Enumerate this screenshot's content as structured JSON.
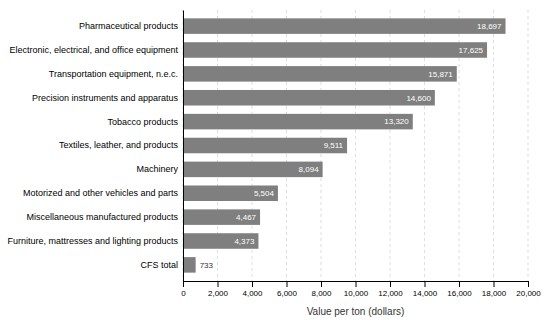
{
  "chart_data": {
    "type": "bar",
    "orientation": "horizontal",
    "categories": [
      "CFS total",
      "Furniture, mattresses and lighting products",
      "Miscellaneous manufactured products",
      "Motorized and other vehicles and parts",
      "Machinery",
      "Textiles, leather, and products",
      "Tobacco products",
      "Precision instruments and apparatus",
      "Transportation equipment, n.e.c.",
      "Electronic, electrical, and office equipment",
      "Pharmaceutical products"
    ],
    "values": [
      733,
      4373,
      4467,
      5504,
      8094,
      9511,
      13320,
      14600,
      15871,
      17625,
      18697
    ],
    "value_labels": [
      "733",
      "4,373",
      "4,467",
      "5,504",
      "8,094",
      "9,511",
      "13,320",
      "14,600",
      "15,871",
      "17,625",
      "18,697"
    ],
    "data_labels": true,
    "color": "#7f7f7f",
    "xlabel": "Value per ton (dollars)",
    "xlim": [
      0,
      20000
    ],
    "xticks": [
      0,
      {
        "value": 2000,
        "label": "2,000"
      },
      {
        "value": 4000,
        "label": "4,000"
      },
      {
        "value": 6000,
        "label": "6,000"
      },
      {
        "value": 8000,
        "label": "8,000"
      },
      {
        "value": 10000,
        "label": "10,000"
      },
      {
        "value": 12000,
        "label": "12,000"
      },
      {
        "value": 14000,
        "label": "14,000"
      },
      {
        "value": 16000,
        "label": "16,000"
      },
      {
        "value": 18000,
        "label": "18,000"
      },
      {
        "value": 20000,
        "label": "20,000"
      }
    ],
    "grid": true
  }
}
